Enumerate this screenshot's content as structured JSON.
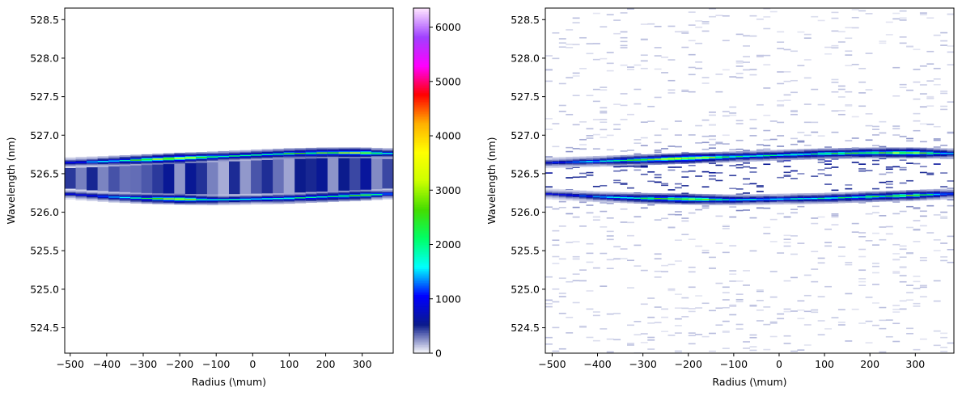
{
  "chart_data": [
    {
      "type": "heatmap",
      "title": "",
      "xlabel": "Radius (\\mum)",
      "ylabel": "Wavelength (nm)",
      "xlim": [
        -515,
        385
      ],
      "ylim": [
        524.17,
        528.65
      ],
      "xticks": [
        -500,
        -400,
        -300,
        -200,
        -100,
        0,
        100,
        200,
        300
      ],
      "xtick_labels": [
        "−500",
        "−400",
        "−300",
        "−200",
        "−100",
        "0",
        "100",
        "200",
        "300"
      ],
      "yticks": [
        524.5,
        525.0,
        525.5,
        526.0,
        526.5,
        527.0,
        527.5,
        528.0,
        528.5
      ],
      "ytick_labels": [
        "524.5",
        "525.0",
        "525.5",
        "526.0",
        "526.5",
        "527.0",
        "527.5",
        "528.0",
        "528.5"
      ],
      "description_of_data": "Intensity ridges vs radius",
      "upper_ridge": {
        "x": [
          -515,
          -400,
          -300,
          -200,
          -100,
          0,
          100,
          200,
          300,
          385
        ],
        "y": [
          526.64,
          526.66,
          526.68,
          526.7,
          526.72,
          526.74,
          526.76,
          526.77,
          526.77,
          526.76
        ]
      },
      "lower_ridge": {
        "x": [
          -515,
          -400,
          -300,
          -200,
          -100,
          0,
          100,
          200,
          300,
          385
        ],
        "y": [
          526.24,
          526.2,
          526.18,
          526.17,
          526.16,
          526.17,
          526.18,
          526.2,
          526.22,
          526.24
        ]
      },
      "ridge_peak_intensity": [
        900,
        1500,
        2500,
        3500,
        2000,
        1800,
        2200,
        2600,
        3000,
        1200
      ],
      "colorbar": {
        "range": [
          0,
          6350
        ],
        "ticks": [
          0,
          1000,
          2000,
          3000,
          4000,
          5000,
          6000
        ],
        "colors": [
          "#ffffff",
          "#0a1a8c",
          "#0000ff",
          "#00ffff",
          "#00ff66",
          "#44dd00",
          "#ccff00",
          "#ffff00",
          "#ffb000",
          "#ff0000",
          "#ff00ff",
          "#a040ff",
          "#ffe6ff"
        ]
      }
    },
    {
      "type": "heatmap",
      "title": "",
      "xlabel": "Radius (\\mum)",
      "ylabel": "Wavelength (nm)",
      "xlim": [
        -515,
        385
      ],
      "ylim": [
        524.17,
        528.65
      ],
      "xticks": [
        -500,
        -400,
        -300,
        -200,
        -100,
        0,
        100,
        200,
        300
      ],
      "xtick_labels": [
        "−500",
        "−400",
        "−300",
        "−200",
        "−100",
        "0",
        "100",
        "200",
        "300"
      ],
      "yticks": [
        524.5,
        525.0,
        525.5,
        526.0,
        526.5,
        527.0,
        527.5,
        528.0,
        528.5
      ],
      "ytick_labels": [
        "524.5",
        "525.0",
        "525.5",
        "526.0",
        "526.5",
        "527.0",
        "527.5",
        "528.0",
        "528.5"
      ],
      "upper_ridge": {
        "x": [
          -515,
          -400,
          -300,
          -200,
          -100,
          0,
          100,
          200,
          300,
          385
        ],
        "y": [
          526.64,
          526.66,
          526.68,
          526.7,
          526.72,
          526.74,
          526.76,
          526.77,
          526.77,
          526.76
        ]
      },
      "lower_ridge": {
        "x": [
          -515,
          -400,
          -300,
          -200,
          -100,
          0,
          100,
          200,
          300,
          385
        ],
        "y": [
          526.24,
          526.2,
          526.18,
          526.17,
          526.16,
          526.17,
          526.18,
          526.2,
          526.22,
          526.24
        ]
      },
      "ridge_peak_intensity": [
        900,
        1500,
        2500,
        3500,
        2000,
        1800,
        2200,
        2600,
        3000,
        1200
      ]
    }
  ]
}
